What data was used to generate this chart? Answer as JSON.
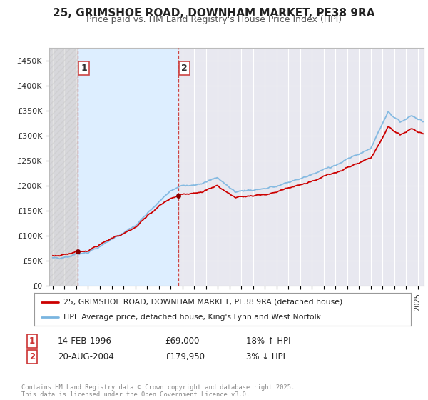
{
  "title": "25, GRIMSHOE ROAD, DOWNHAM MARKET, PE38 9RA",
  "subtitle": "Price paid vs. HM Land Registry's House Price Index (HPI)",
  "legend_line1": "25, GRIMSHOE ROAD, DOWNHAM MARKET, PE38 9RA (detached house)",
  "legend_line2": "HPI: Average price, detached house, King's Lynn and West Norfolk",
  "footer": "Contains HM Land Registry data © Crown copyright and database right 2025.\nThis data is licensed under the Open Government Licence v3.0.",
  "annotation1_date": "14-FEB-1996",
  "annotation1_price": "£69,000",
  "annotation1_hpi": "18% ↑ HPI",
  "annotation2_date": "20-AUG-2004",
  "annotation2_price": "£179,950",
  "annotation2_hpi": "3% ↓ HPI",
  "sale1_year": 1996.12,
  "sale1_price": 69000,
  "sale2_year": 2004.64,
  "sale2_price": 179950,
  "hpi_color": "#7ab5e0",
  "price_color": "#cc0000",
  "shade_color": "#ddeeff",
  "background_chart": "#e8e8f0",
  "grid_color": "#ffffff",
  "ylim_max": 475000,
  "ylim_min": 0,
  "xmin": 1993.7,
  "xmax": 2025.5
}
